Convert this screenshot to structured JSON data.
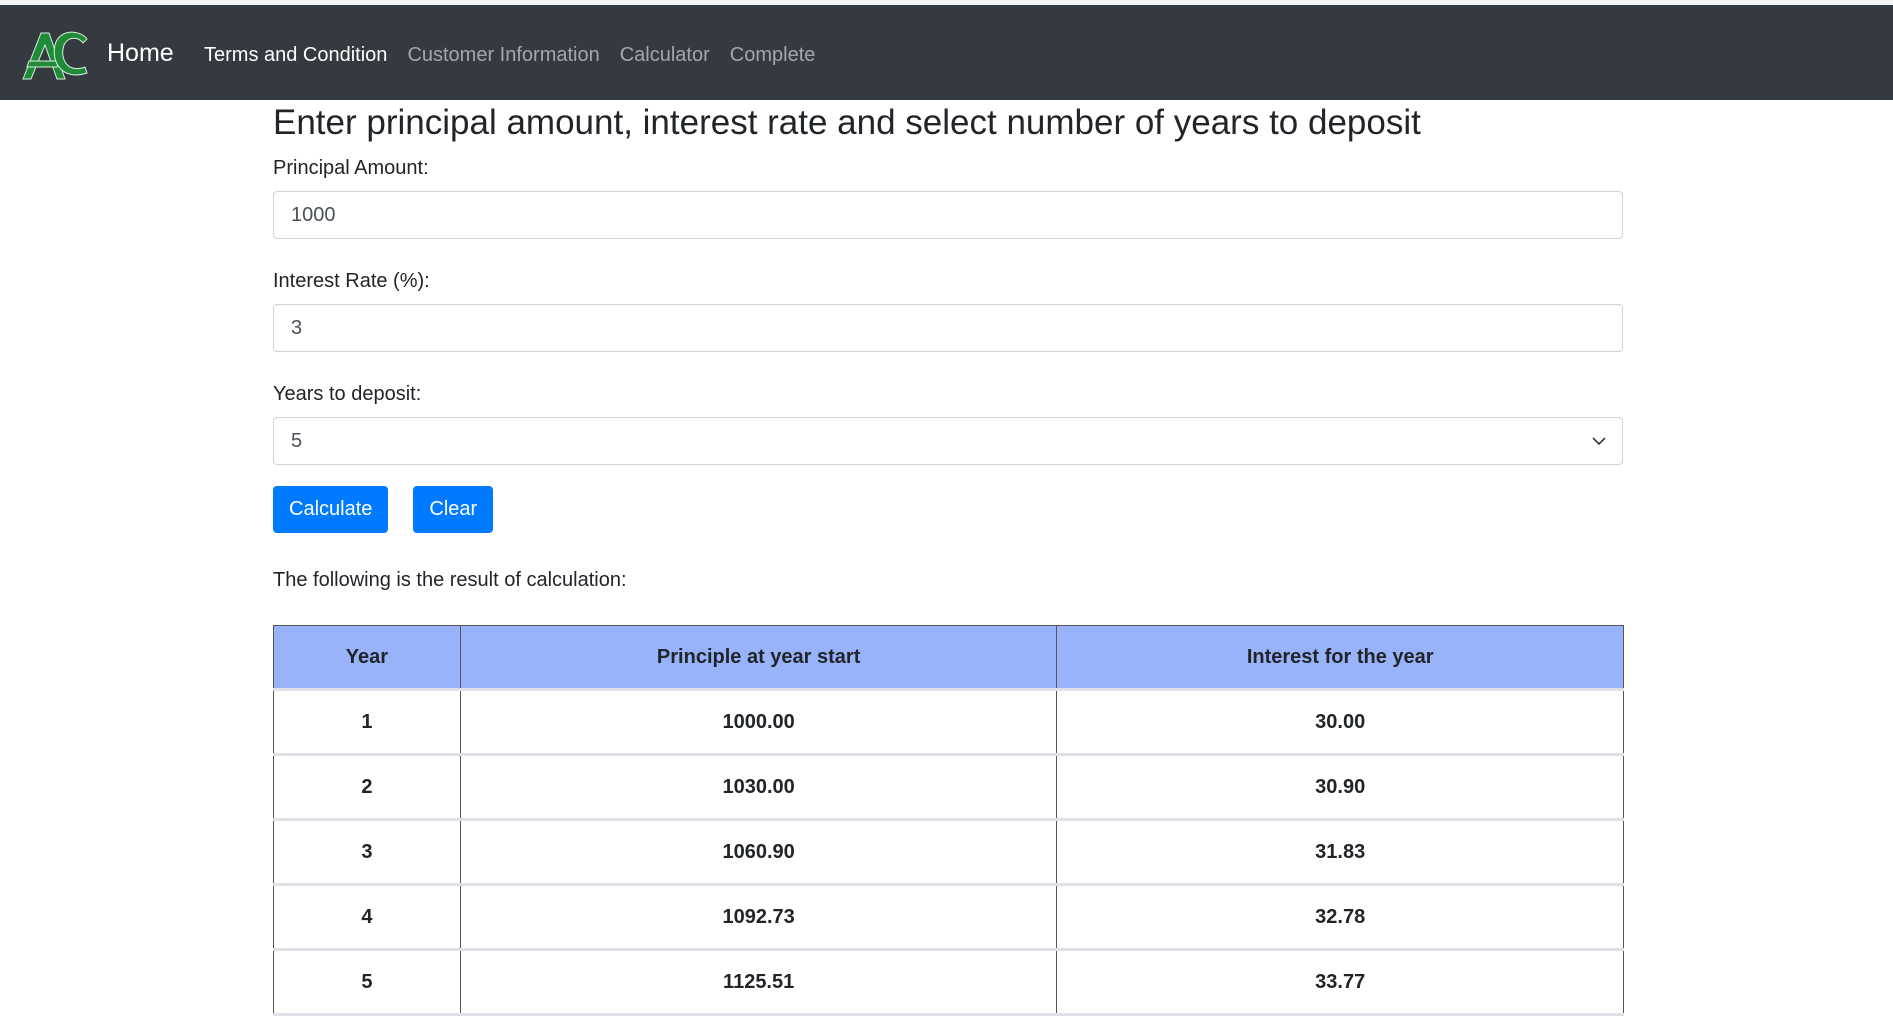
{
  "nav": {
    "brand": "Home",
    "links": [
      {
        "label": "Terms and Condition",
        "active": true
      },
      {
        "label": "Customer Information",
        "active": false
      },
      {
        "label": "Calculator",
        "active": false
      },
      {
        "label": "Complete",
        "active": false
      }
    ],
    "logo_icon": "ac-logo-icon",
    "logo_text": "AC"
  },
  "form": {
    "heading": "Enter principal amount, interest rate and select number of years to deposit",
    "principal_label": "Principal Amount:",
    "principal_value": "1000",
    "rate_label": "Interest Rate (%):",
    "rate_value": "3",
    "years_label": "Years to deposit:",
    "years_value": "5",
    "calculate_label": "Calculate",
    "clear_label": "Clear"
  },
  "results": {
    "intro": "The following is the result of calculation:",
    "headers": [
      "Year",
      "Principle at year start",
      "Interest for the year"
    ],
    "rows": [
      [
        "1",
        "1000.00",
        "30.00"
      ],
      [
        "2",
        "1030.00",
        "30.90"
      ],
      [
        "3",
        "1060.90",
        "31.83"
      ],
      [
        "4",
        "1092.73",
        "32.78"
      ],
      [
        "5",
        "1125.51",
        "33.77"
      ]
    ]
  },
  "colors": {
    "navbar": "#343a40",
    "primary": "#007bff",
    "table_header": "#99b3fb",
    "logo_green": "#1f8a3a"
  }
}
